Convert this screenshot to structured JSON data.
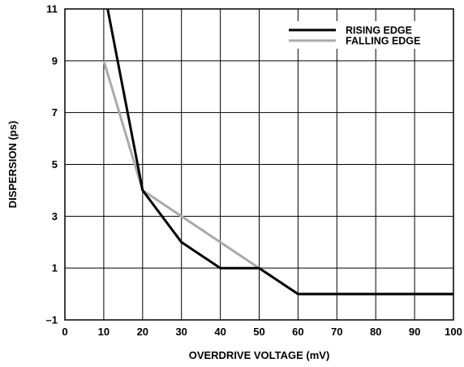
{
  "chart_data": {
    "type": "line",
    "xlabel": "OVERDRIVE VOLTAGE (mV)",
    "ylabel": "DISPERSION (ps)",
    "xlim": [
      0,
      100
    ],
    "ylim": [
      -1,
      11
    ],
    "x_ticks": [
      0,
      10,
      20,
      30,
      40,
      50,
      60,
      70,
      80,
      90,
      100
    ],
    "y_ticks": [
      -1,
      1,
      3,
      5,
      7,
      9,
      11
    ],
    "y_tick_labels": [
      "–1",
      "1",
      "3",
      "5",
      "7",
      "9",
      "11"
    ],
    "grid": true,
    "legend_position": "top-right",
    "series": [
      {
        "name": "RISING EDGE",
        "color": "#000000",
        "points": [
          [
            11,
            11
          ],
          [
            20,
            4
          ],
          [
            30,
            2
          ],
          [
            40,
            1
          ],
          [
            50,
            1
          ],
          [
            60,
            0
          ],
          [
            100,
            0
          ]
        ]
      },
      {
        "name": "FALLING EDGE",
        "color": "#aaaaaa",
        "points": [
          [
            10,
            9
          ],
          [
            20,
            4
          ],
          [
            50,
            1
          ],
          [
            60,
            0
          ],
          [
            100,
            0
          ]
        ]
      }
    ]
  }
}
